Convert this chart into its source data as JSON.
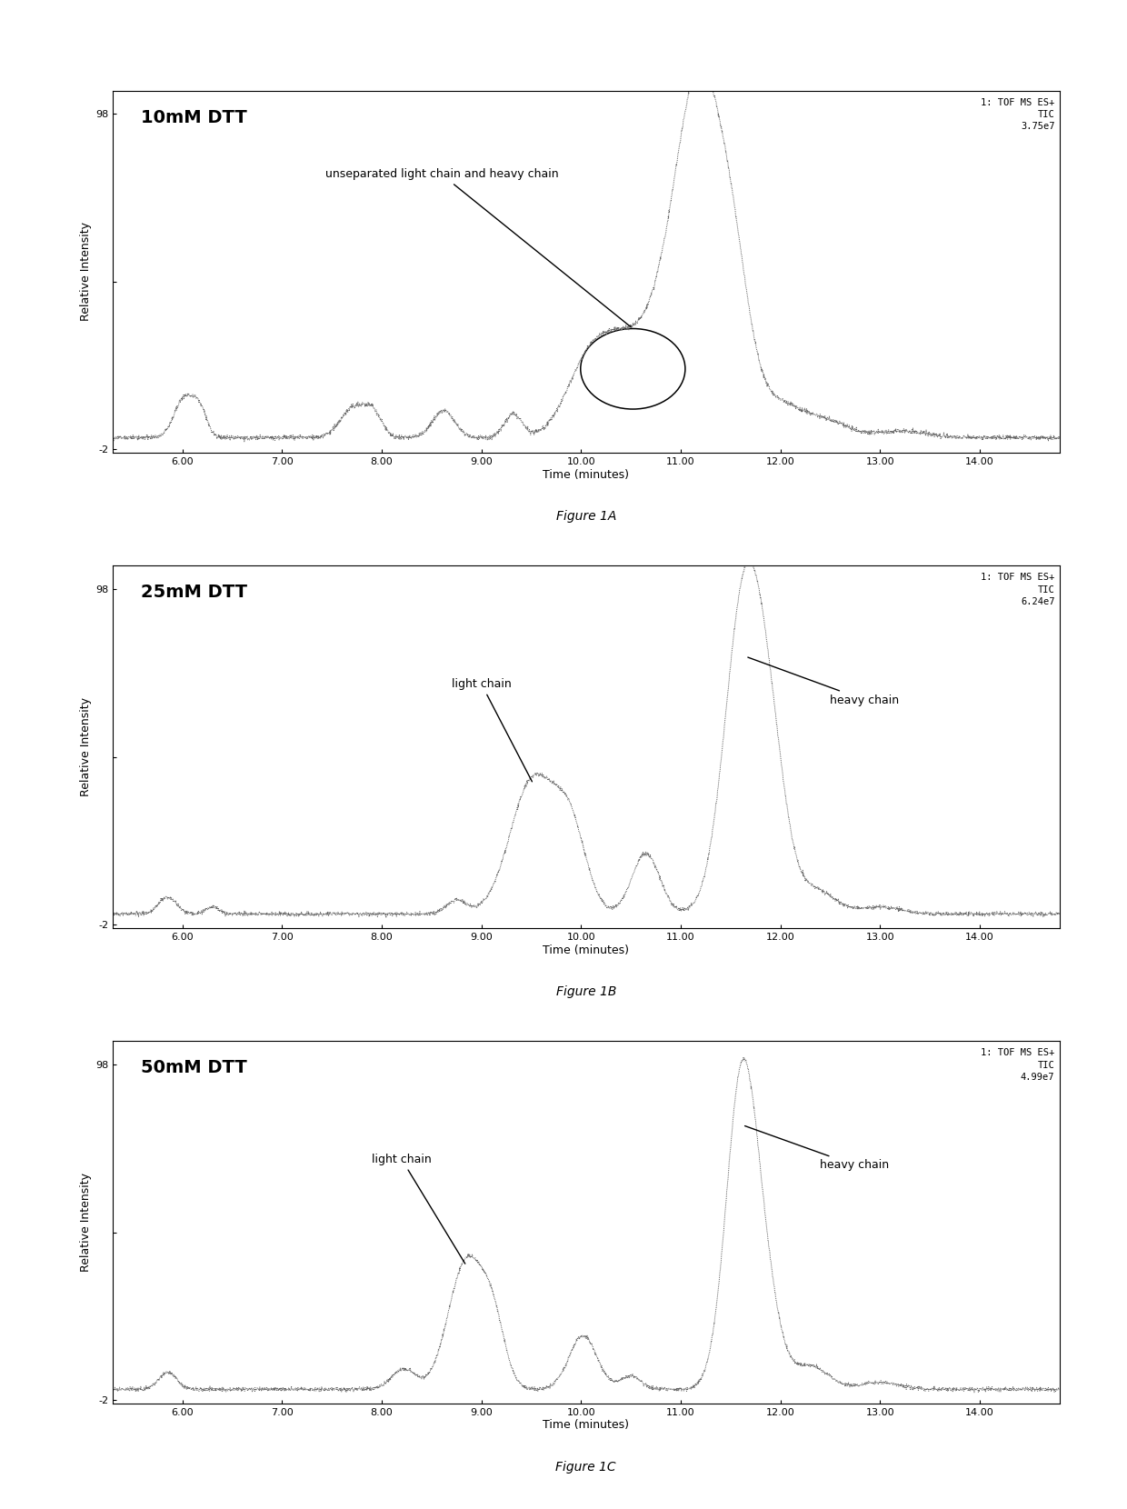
{
  "panels": [
    {
      "title": "10mM DTT",
      "figure_label": "Figure 1A",
      "top_right_text": "1: TOF MS ES+\nTIC\n3.75e7",
      "ylabel": "Relative Intensity",
      "xlabel": "Time (minutes)",
      "xtick_positions": [
        6.0,
        7.0,
        8.0,
        9.0,
        10.0,
        11.0,
        12.0,
        13.0,
        14.0
      ],
      "xtick_labels": [
        "6.00",
        "7.00",
        "8.00",
        "9.00",
        "10.00",
        "11.00",
        "12.00",
        "13.00",
        "14.00"
      ],
      "xlim": [
        5.3,
        14.8
      ],
      "ylim": [
        -3,
        105
      ],
      "ytick_vals": [
        -2,
        48,
        98
      ],
      "ytick_labels": [
        "-2",
        "",
        "98"
      ]
    },
    {
      "title": "25mM DTT",
      "figure_label": "Figure 1B",
      "top_right_text": "1: TOF MS ES+\nTIC\n6.24e7",
      "ylabel": "Relative Intensity",
      "xlabel": "Time (minutes)",
      "xtick_positions": [
        6.0,
        7.0,
        8.0,
        9.0,
        10.0,
        11.0,
        12.0,
        13.0,
        14.0
      ],
      "xtick_labels": [
        "6.00",
        "7.00",
        "8.00",
        "9.00",
        "10.00",
        "11.00",
        "12.00",
        "13.00",
        "14.00"
      ],
      "xlim": [
        5.3,
        14.8
      ],
      "ylim": [
        -3,
        105
      ],
      "ytick_vals": [
        -2,
        48,
        98
      ],
      "ytick_labels": [
        "-2",
        "",
        "98"
      ]
    },
    {
      "title": "50mM DTT",
      "figure_label": "Figure 1C",
      "top_right_text": "1: TOF MS ES+\nTIC\n4.99e7",
      "ylabel": "Relative Intensity",
      "xlabel": "Time (minutes)",
      "xtick_positions": [
        6.0,
        7.0,
        8.0,
        9.0,
        10.0,
        11.0,
        12.0,
        13.0,
        14.0
      ],
      "xtick_labels": [
        "6.00",
        "7.00",
        "8.00",
        "9.00",
        "10.00",
        "11.00",
        "12.00",
        "13.00",
        "14.00"
      ],
      "xlim": [
        5.3,
        14.8
      ],
      "ylim": [
        -3,
        105
      ],
      "ytick_vals": [
        -2,
        48,
        98
      ],
      "ytick_labels": [
        "-2",
        "",
        "98"
      ]
    }
  ],
  "line_color": "#666666",
  "bg_color": "#ffffff",
  "fig_width": 12.4,
  "fig_height": 16.6
}
